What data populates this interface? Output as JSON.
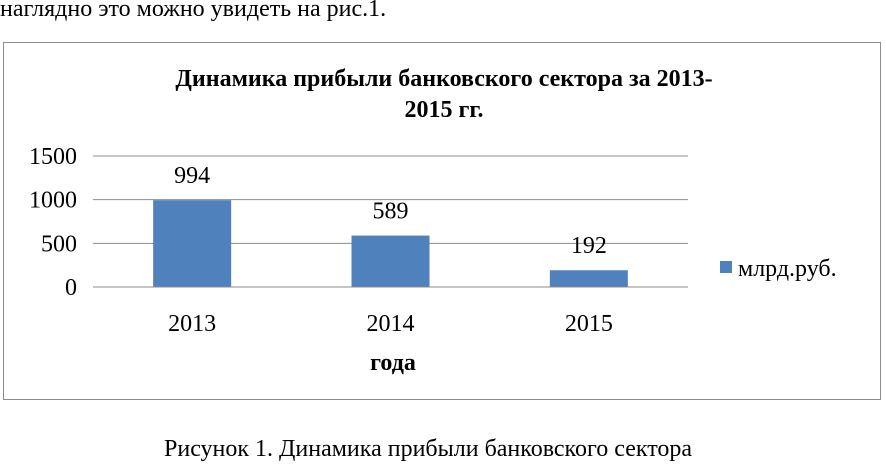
{
  "page": {
    "intro_text": "наглядно это можно увидеть на рис.1.",
    "caption": "Рисунок 1. Динамика прибыли банковского сектора"
  },
  "chart_data": {
    "type": "bar",
    "title_line1": "Динамика прибыли банковского сектора за 2013-",
    "title_line2": "2015 гг.",
    "categories": [
      "2013",
      "2014",
      "2015"
    ],
    "series": [
      {
        "name": "млрд.руб.",
        "values": [
          994,
          589,
          192
        ],
        "color": "#4f81bd"
      }
    ],
    "data_labels": [
      "994",
      "589",
      "192"
    ],
    "xlabel": "года",
    "ylabel": "",
    "ylim": [
      0,
      1500
    ],
    "yticks": [
      0,
      500,
      1000,
      1500
    ],
    "ytick_labels": [
      "0",
      "500",
      "1000",
      "1500"
    ],
    "grid": true,
    "legend_position": "right"
  }
}
